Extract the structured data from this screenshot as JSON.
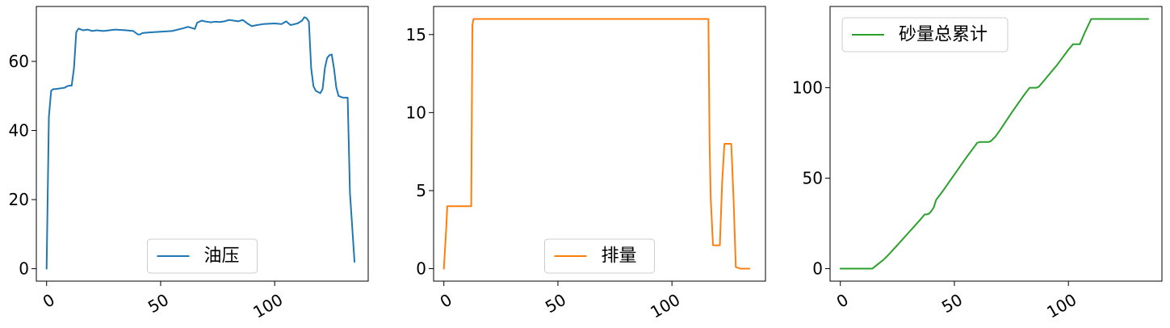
{
  "chart_data": [
    {
      "type": "line",
      "series": [
        {
          "name": "油压",
          "color": "#1f77b4",
          "x": [
            0,
            1,
            2,
            3,
            4,
            6,
            8,
            9,
            10,
            11,
            12,
            13,
            14,
            16,
            18,
            20,
            22,
            25,
            30,
            35,
            38,
            40,
            41,
            42,
            45,
            50,
            55,
            60,
            62,
            65,
            66,
            68,
            70,
            72,
            74,
            76,
            78,
            80,
            82,
            84,
            86,
            88,
            90,
            92,
            95,
            100,
            103,
            105,
            107,
            110,
            112,
            113,
            114,
            115,
            116,
            117,
            118,
            120,
            121,
            122,
            123,
            124,
            125,
            126,
            127,
            128,
            130,
            132,
            133,
            135
          ],
          "y": [
            0,
            44,
            51.5,
            52,
            52,
            52.2,
            52.4,
            52.8,
            53,
            53,
            58,
            68.5,
            69.5,
            69,
            69.2,
            68.8,
            69,
            68.8,
            69.2,
            69,
            68.8,
            67.8,
            67.8,
            68.2,
            68.4,
            68.6,
            68.8,
            69.6,
            70,
            69.4,
            71.2,
            71.8,
            71.5,
            71.3,
            71.5,
            71.4,
            71.6,
            72,
            71.8,
            71.6,
            72,
            71,
            70.2,
            70.5,
            70.8,
            71,
            70.8,
            71.6,
            70.5,
            71,
            71.8,
            72.8,
            72.5,
            71.5,
            58,
            52.8,
            51.5,
            50.8,
            52,
            58,
            61,
            61.8,
            62,
            58,
            52.5,
            50,
            49.5,
            49.5,
            22,
            2
          ]
        }
      ],
      "xlim": [
        -4.5,
        141
      ],
      "ylim": [
        -3.6,
        75.9
      ],
      "xticks": [
        0,
        50,
        100
      ],
      "yticks": [
        0,
        20,
        40,
        60
      ],
      "legend": "lower center",
      "grid": false
    },
    {
      "type": "line",
      "series": [
        {
          "name": "排量",
          "color": "#ff7f0e",
          "x": [
            0,
            1,
            1.5,
            12,
            12.5,
            13,
            20,
            50,
            100,
            115,
            116,
            116.5,
            117,
            118,
            119,
            120,
            121,
            122,
            123,
            124,
            125,
            126,
            127,
            128,
            130,
            132,
            133,
            134
          ],
          "y": [
            0,
            2.5,
            4,
            4,
            15.6,
            16,
            16,
            16,
            16,
            16,
            16,
            8,
            4.5,
            1.5,
            1.5,
            1.5,
            1.5,
            5.5,
            8,
            8,
            8,
            8,
            4.5,
            0.1,
            0,
            0,
            0,
            0
          ]
        }
      ],
      "xlim": [
        -4.5,
        141
      ],
      "ylim": [
        -0.8,
        16.8
      ],
      "xticks": [
        0,
        50,
        100
      ],
      "yticks": [
        0,
        5,
        10,
        15
      ],
      "legend": "lower center",
      "grid": false
    },
    {
      "type": "line",
      "series": [
        {
          "name": "砂量总累计",
          "color": "#2ca02c",
          "x": [
            0,
            5,
            10,
            14,
            15,
            17,
            19,
            21,
            25,
            30,
            35,
            37,
            38,
            39,
            40,
            41,
            42,
            45,
            50,
            55,
            60,
            61,
            62,
            63,
            64,
            65,
            66,
            68,
            70,
            75,
            80,
            83,
            84,
            85,
            86,
            87,
            88,
            90,
            95,
            100,
            102,
            103,
            104,
            105,
            107,
            110,
            112,
            115,
            120,
            125,
            130,
            135
          ],
          "y": [
            0,
            0,
            0,
            0,
            1,
            3,
            5,
            7.5,
            13,
            20,
            27,
            30,
            30,
            30.5,
            32,
            34,
            38,
            43,
            52,
            61,
            69.5,
            70,
            70,
            70,
            70,
            70,
            70.5,
            73,
            76.5,
            86,
            95,
            100,
            100,
            100,
            100,
            100.5,
            102,
            105,
            112.5,
            121,
            124,
            124,
            124,
            124,
            130,
            138,
            138,
            138,
            138,
            138,
            138,
            138
          ]
        }
      ],
      "xlim": [
        -4.5,
        141
      ],
      "ylim": [
        -6.9,
        144.9
      ],
      "xticks": [
        0,
        50,
        100
      ],
      "yticks": [
        0,
        50,
        100
      ],
      "legend": "upper left",
      "grid": false
    }
  ]
}
